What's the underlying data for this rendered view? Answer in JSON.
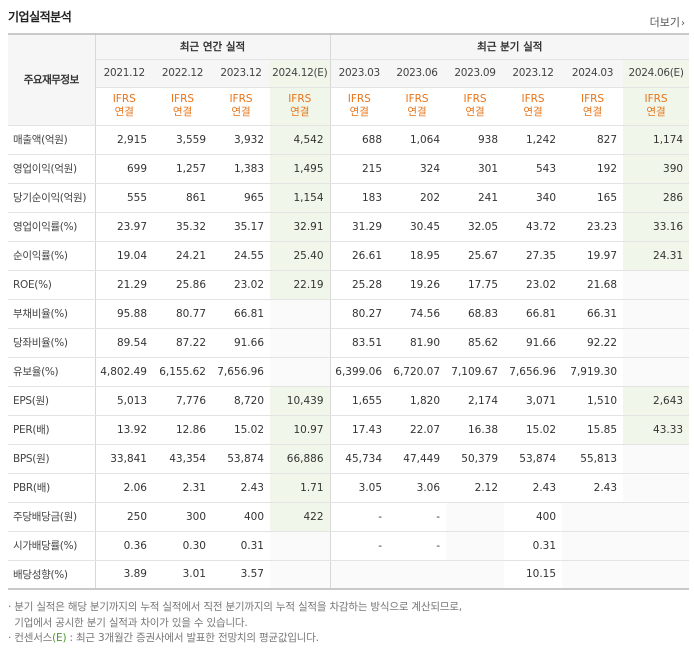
{
  "title": "기업실적분석",
  "more_label": "더보기",
  "header": {
    "corner": "주요재무정보",
    "groups": [
      "최근 연간 실적",
      "최근 분기 실적"
    ],
    "annual_periods": [
      "2021.12",
      "2022.12",
      "2023.12",
      "2024.12(E)"
    ],
    "quarter_periods": [
      "2023.03",
      "2023.06",
      "2023.09",
      "2023.12",
      "2024.03",
      "2024.06(E)"
    ],
    "ifrs_line1": "IFRS",
    "ifrs_line2": "연결"
  },
  "rows": [
    {
      "label": "매출액(억원)",
      "annual": [
        "2,915",
        "3,559",
        "3,932",
        "4,542"
      ],
      "quarter": [
        "688",
        "1,064",
        "938",
        "1,242",
        "827",
        "1,174"
      ]
    },
    {
      "label": "영업이익(억원)",
      "annual": [
        "699",
        "1,257",
        "1,383",
        "1,495"
      ],
      "quarter": [
        "215",
        "324",
        "301",
        "543",
        "192",
        "390"
      ]
    },
    {
      "label": "당기순이익(억원)",
      "annual": [
        "555",
        "861",
        "965",
        "1,154"
      ],
      "quarter": [
        "183",
        "202",
        "241",
        "340",
        "165",
        "286"
      ]
    },
    {
      "label": "영업이익률(%)",
      "annual": [
        "23.97",
        "35.32",
        "35.17",
        "32.91"
      ],
      "quarter": [
        "31.29",
        "30.45",
        "32.05",
        "43.72",
        "23.23",
        "33.16"
      ]
    },
    {
      "label": "순이익률(%)",
      "annual": [
        "19.04",
        "24.21",
        "24.55",
        "25.40"
      ],
      "quarter": [
        "26.61",
        "18.95",
        "25.67",
        "27.35",
        "19.97",
        "24.31"
      ]
    },
    {
      "label": "ROE(%)",
      "annual": [
        "21.29",
        "25.86",
        "23.02",
        "22.19"
      ],
      "quarter": [
        "25.28",
        "19.26",
        "17.75",
        "23.02",
        "21.68",
        ""
      ]
    },
    {
      "label": "부채비율(%)",
      "annual": [
        "95.88",
        "80.77",
        "66.81",
        ""
      ],
      "quarter": [
        "80.27",
        "74.56",
        "68.83",
        "66.81",
        "66.31",
        ""
      ]
    },
    {
      "label": "당좌비율(%)",
      "annual": [
        "89.54",
        "87.22",
        "91.66",
        ""
      ],
      "quarter": [
        "83.51",
        "81.90",
        "85.62",
        "91.66",
        "92.22",
        ""
      ]
    },
    {
      "label": "유보율(%)",
      "annual": [
        "4,802.49",
        "6,155.62",
        "7,656.96",
        ""
      ],
      "quarter": [
        "6,399.06",
        "6,720.07",
        "7,109.67",
        "7,656.96",
        "7,919.30",
        ""
      ]
    },
    {
      "label": "EPS(원)",
      "annual": [
        "5,013",
        "7,776",
        "8,720",
        "10,439"
      ],
      "quarter": [
        "1,655",
        "1,820",
        "2,174",
        "3,071",
        "1,510",
        "2,643"
      ]
    },
    {
      "label": "PER(배)",
      "annual": [
        "13.92",
        "12.86",
        "15.02",
        "10.97"
      ],
      "quarter": [
        "17.43",
        "22.07",
        "16.38",
        "15.02",
        "15.85",
        "43.33"
      ]
    },
    {
      "label": "BPS(원)",
      "annual": [
        "33,841",
        "43,354",
        "53,874",
        "66,886"
      ],
      "quarter": [
        "45,734",
        "47,449",
        "50,379",
        "53,874",
        "55,813",
        ""
      ]
    },
    {
      "label": "PBR(배)",
      "annual": [
        "2.06",
        "2.31",
        "2.43",
        "1.71"
      ],
      "quarter": [
        "3.05",
        "3.06",
        "2.12",
        "2.43",
        "2.43",
        ""
      ]
    },
    {
      "label": "주당배당금(원)",
      "annual": [
        "250",
        "300",
        "400",
        "422"
      ],
      "quarter": [
        "-",
        "-",
        "",
        "400",
        "",
        ""
      ]
    },
    {
      "label": "시가배당률(%)",
      "annual": [
        "0.36",
        "0.30",
        "0.31",
        ""
      ],
      "quarter": [
        "-",
        "-",
        "",
        "0.31",
        "",
        ""
      ]
    },
    {
      "label": "배당성향(%)",
      "annual": [
        "3.89",
        "3.01",
        "3.57",
        ""
      ],
      "quarter": [
        "",
        "",
        "",
        "10.15",
        "",
        ""
      ]
    }
  ],
  "notes": {
    "line1": "분기 실적은 해당 분기까지의 누적 실적에서 직전 분기까지의 누적 실적을 차감하는 방식으로 계산되므로,",
    "line2": "기업에서 공시한 분기 실적과 차이가 있을 수 있습니다.",
    "line3_prefix": "컨센서스",
    "line3_e": "(E)",
    "line3_rest": " : 최근 3개월간 증권사에서 발표한 전망치의 평균값입니다."
  }
}
